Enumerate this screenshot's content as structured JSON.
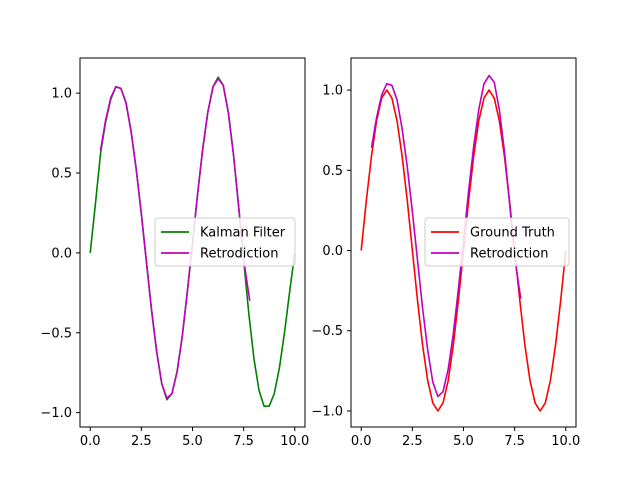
{
  "chart_data": [
    {
      "type": "line",
      "title": "",
      "xlabel": "",
      "ylabel": "",
      "xlim": [
        -0.5,
        10.5
      ],
      "ylim": [
        -1.09,
        1.22
      ],
      "x_ticks": [
        0.0,
        2.5,
        5.0,
        7.5,
        10.0
      ],
      "x_tick_labels": [
        "0.0",
        "2.5",
        "5.0",
        "7.5",
        "10.0"
      ],
      "y_ticks": [
        -1.0,
        -0.5,
        0.0,
        0.5,
        1.0
      ],
      "y_tick_labels": [
        "−1.0",
        "−0.5",
        "0.0",
        "0.5",
        "1.0"
      ],
      "legend_position": "center-right",
      "series": [
        {
          "name": "Kalman Filter",
          "color": "#008000",
          "x": [
            0.0,
            0.25,
            0.5,
            0.75,
            1.0,
            1.25,
            1.5,
            1.75,
            2.0,
            2.25,
            2.5,
            2.75,
            3.0,
            3.25,
            3.5,
            3.75,
            4.0,
            4.25,
            4.5,
            4.75,
            5.0,
            5.25,
            5.5,
            5.75,
            6.0,
            6.25,
            6.5,
            6.75,
            7.0,
            7.25,
            7.5,
            7.75,
            8.0,
            8.25,
            8.5,
            8.75,
            9.0,
            9.25,
            9.5,
            9.75,
            10.0
          ],
          "y": [
            0.0,
            0.3,
            0.62,
            0.82,
            0.96,
            1.04,
            1.03,
            0.94,
            0.76,
            0.52,
            0.24,
            -0.06,
            -0.36,
            -0.62,
            -0.82,
            -0.92,
            -0.88,
            -0.74,
            -0.52,
            -0.24,
            0.06,
            0.37,
            0.65,
            0.88,
            1.04,
            1.1,
            1.05,
            0.88,
            0.62,
            0.3,
            -0.04,
            -0.38,
            -0.66,
            -0.86,
            -0.96,
            -0.96,
            -0.88,
            -0.72,
            -0.5,
            -0.24,
            0.0
          ]
        },
        {
          "name": "Retrodiction",
          "color": "#bf00bf",
          "x": [
            0.5,
            0.75,
            1.0,
            1.25,
            1.5,
            1.75,
            2.0,
            2.25,
            2.5,
            2.75,
            3.0,
            3.25,
            3.5,
            3.75,
            4.0,
            4.25,
            4.5,
            4.75,
            5.0,
            5.25,
            5.5,
            5.75,
            6.0,
            6.25,
            6.5,
            6.75,
            7.0,
            7.25,
            7.5,
            7.75,
            7.8
          ],
          "y": [
            0.64,
            0.83,
            0.97,
            1.04,
            1.03,
            0.94,
            0.76,
            0.52,
            0.24,
            -0.06,
            -0.36,
            -0.62,
            -0.82,
            -0.91,
            -0.88,
            -0.74,
            -0.52,
            -0.24,
            0.06,
            0.37,
            0.65,
            0.88,
            1.04,
            1.09,
            1.05,
            0.88,
            0.62,
            0.3,
            -0.04,
            -0.26,
            -0.3
          ]
        }
      ]
    },
    {
      "type": "line",
      "title": "",
      "xlabel": "",
      "ylabel": "",
      "xlim": [
        -0.5,
        10.5
      ],
      "ylim": [
        -1.1,
        1.2
      ],
      "x_ticks": [
        0.0,
        2.5,
        5.0,
        7.5,
        10.0
      ],
      "x_tick_labels": [
        "0.0",
        "2.5",
        "5.0",
        "7.5",
        "10.0"
      ],
      "y_ticks": [
        -1.0,
        -0.5,
        0.0,
        0.5,
        1.0
      ],
      "y_tick_labels": [
        "−1.0",
        "−0.5",
        "0.0",
        "0.5",
        "1.0"
      ],
      "legend_position": "center-right",
      "series": [
        {
          "name": "Ground Truth",
          "color": "#ff0000",
          "x": [
            0.0,
            0.25,
            0.5,
            0.75,
            1.0,
            1.25,
            1.5,
            1.75,
            2.0,
            2.25,
            2.5,
            2.75,
            3.0,
            3.25,
            3.5,
            3.75,
            4.0,
            4.25,
            4.5,
            4.75,
            5.0,
            5.25,
            5.5,
            5.75,
            6.0,
            6.25,
            6.5,
            6.75,
            7.0,
            7.25,
            7.5,
            7.75,
            8.0,
            8.25,
            8.5,
            8.75,
            9.0,
            9.25,
            9.5,
            9.75,
            10.0
          ],
          "y": [
            0.0,
            0.31,
            0.59,
            0.81,
            0.95,
            1.0,
            0.95,
            0.81,
            0.59,
            0.31,
            0.0,
            -0.31,
            -0.59,
            -0.81,
            -0.95,
            -1.0,
            -0.95,
            -0.81,
            -0.59,
            -0.31,
            0.0,
            0.31,
            0.59,
            0.81,
            0.95,
            1.0,
            0.95,
            0.81,
            0.59,
            0.31,
            0.0,
            -0.31,
            -0.59,
            -0.81,
            -0.95,
            -1.0,
            -0.95,
            -0.81,
            -0.59,
            -0.31,
            0.0
          ]
        },
        {
          "name": "Retrodiction",
          "color": "#bf00bf",
          "x": [
            0.5,
            0.75,
            1.0,
            1.25,
            1.5,
            1.75,
            2.0,
            2.25,
            2.5,
            2.75,
            3.0,
            3.25,
            3.5,
            3.75,
            4.0,
            4.25,
            4.5,
            4.75,
            5.0,
            5.25,
            5.5,
            5.75,
            6.0,
            6.25,
            6.5,
            6.75,
            7.0,
            7.25,
            7.5,
            7.75,
            7.8
          ],
          "y": [
            0.64,
            0.83,
            0.97,
            1.04,
            1.03,
            0.94,
            0.76,
            0.52,
            0.24,
            -0.06,
            -0.36,
            -0.62,
            -0.82,
            -0.91,
            -0.88,
            -0.74,
            -0.52,
            -0.24,
            0.06,
            0.37,
            0.65,
            0.88,
            1.04,
            1.09,
            1.05,
            0.88,
            0.62,
            0.3,
            -0.04,
            -0.26,
            -0.3
          ]
        }
      ]
    }
  ]
}
